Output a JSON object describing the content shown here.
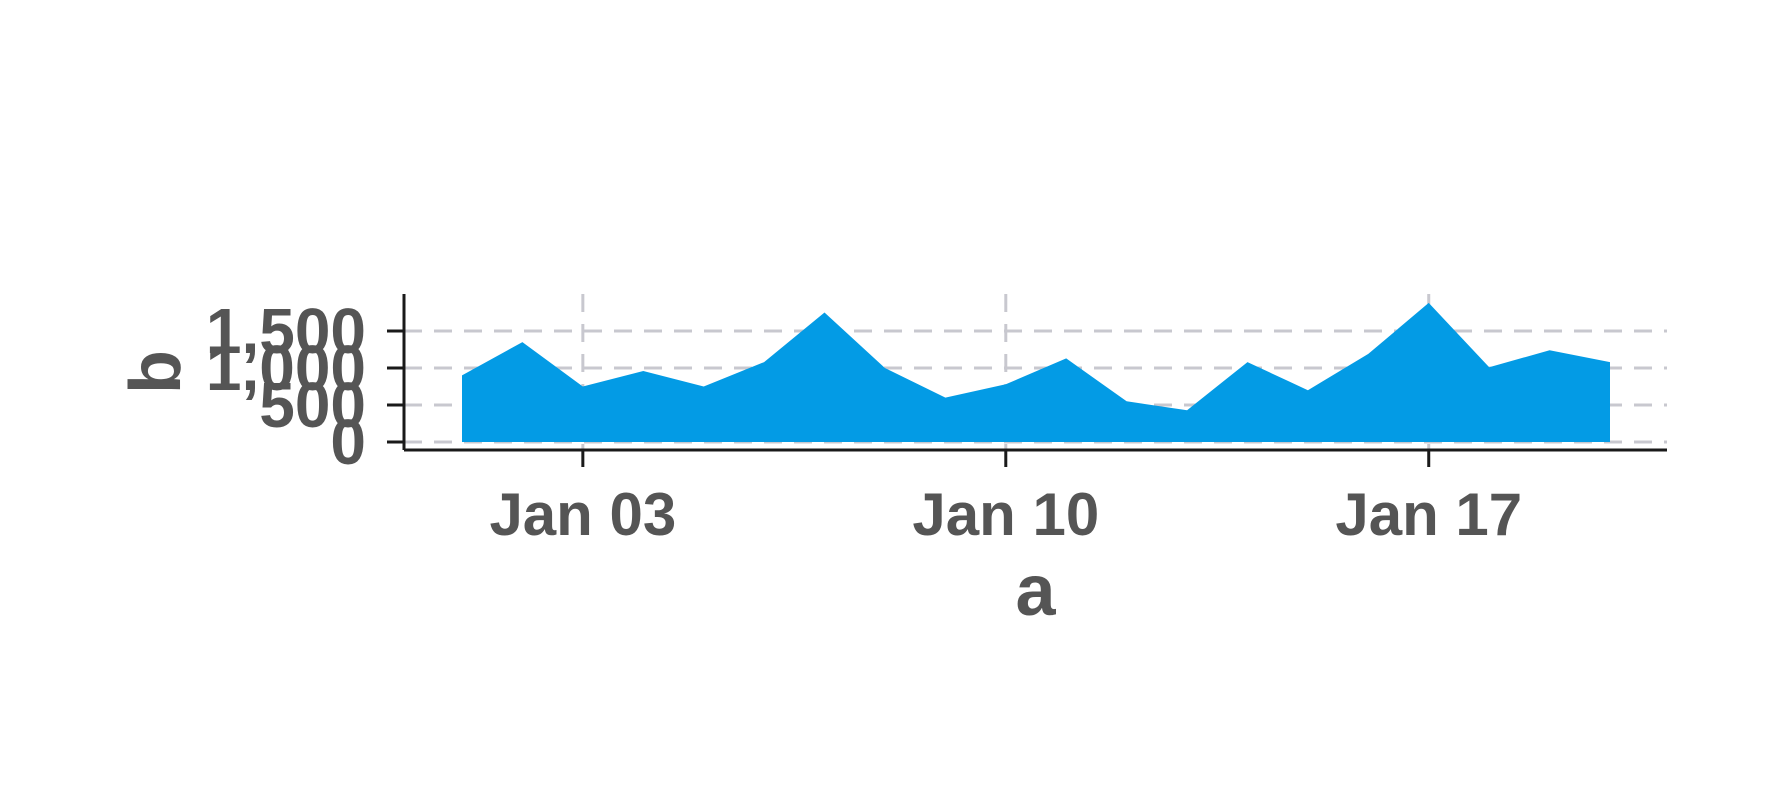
{
  "chart_data": {
    "type": "area",
    "x": [
      "2024-01-01",
      "2024-01-02",
      "2024-01-03",
      "2024-01-04",
      "2024-01-05",
      "2024-01-06",
      "2024-01-07",
      "2024-01-08",
      "2024-01-09",
      "2024-01-10",
      "2024-01-11",
      "2024-01-12",
      "2024-01-13",
      "2024-01-14",
      "2024-01-15",
      "2024-01-16",
      "2024-01-17",
      "2024-01-18",
      "2024-01-19",
      "2024-01-20"
    ],
    "series": [
      {
        "values": [
          900,
          1350,
          750,
          960,
          750,
          1080,
          1750,
          1000,
          600,
          780,
          1130,
          550,
          430,
          1080,
          700,
          1190,
          1880,
          1010,
          1240,
          1080
        ],
        "color": "#039be5"
      }
    ],
    "xlabel": "a",
    "ylabel": "b",
    "x_ticks": [
      {
        "value": "2024-01-03",
        "label": "Jan 03"
      },
      {
        "value": "2024-01-10",
        "label": "Jan 10"
      },
      {
        "value": "2024-01-17",
        "label": "Jan 17"
      }
    ],
    "y_ticks": [
      {
        "value": 0,
        "label": "0"
      },
      {
        "value": 500,
        "label": "500"
      },
      {
        "value": 1000,
        "label": "1,000"
      },
      {
        "value": 1500,
        "label": "1,500"
      }
    ],
    "xlim": [
      "2024-01-01",
      "2024-01-21"
    ],
    "ylim": [
      0,
      1500
    ],
    "grid": true,
    "legend": "none"
  }
}
